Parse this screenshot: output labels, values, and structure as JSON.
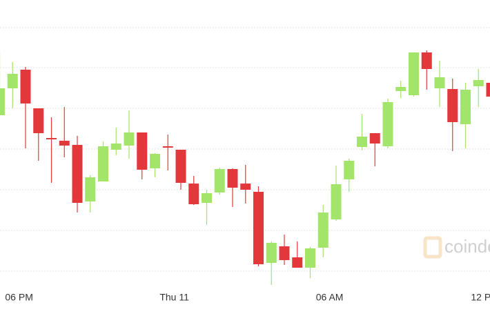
{
  "chart_data": {
    "type": "candlestick",
    "categories": [
      null,
      "06 PM",
      null,
      null,
      null,
      null,
      null,
      null,
      null,
      null,
      null,
      null,
      null,
      "Thu 11",
      null,
      null,
      null,
      null,
      null,
      null,
      null,
      null,
      null,
      null,
      null,
      "06 AM",
      null,
      null,
      null,
      null,
      null,
      null,
      null,
      null,
      null,
      null,
      null,
      "12 PM",
      null
    ],
    "open": [
      243,
      282,
      309,
      253,
      210,
      206,
      200,
      118,
      147,
      193,
      199,
      218,
      166,
      198,
      193,
      144,
      116,
      131,
      165,
      144,
      132,
      29,
      53,
      37,
      22,
      51,
      92,
      150,
      197,
      217,
      198,
      278,
      272,
      334,
      282,
      281,
      230,
      285,
      290
    ],
    "high": [
      335,
      320,
      313,
      253,
      240,
      255,
      213,
      156,
      205,
      225,
      250,
      218,
      188,
      215,
      193,
      155,
      135,
      167,
      166,
      171,
      140,
      60,
      70,
      60,
      52,
      113,
      170,
      180,
      245,
      217,
      267,
      293,
      334,
      337,
      322,
      296,
      290,
      310,
      300
    ],
    "low": [
      243,
      253,
      195,
      177,
      145,
      182,
      102,
      102,
      147,
      185,
      180,
      150,
      153,
      163,
      135,
      113,
      84,
      128,
      110,
      115,
      24,
      -3,
      26,
      22,
      7,
      37,
      90,
      132,
      192,
      169,
      195,
      268,
      270,
      280,
      255,
      191,
      195,
      255,
      265
    ],
    "close": [
      282,
      303,
      260,
      217,
      208,
      199,
      116,
      153,
      198,
      202,
      218,
      164,
      187,
      196,
      145,
      114,
      130,
      165,
      138,
      135,
      27,
      58,
      33,
      22,
      50,
      102,
      143,
      177,
      212,
      202,
      262,
      284,
      334,
      310,
      298,
      233,
      280,
      294,
      270
    ],
    "up_color": "#a3e46b",
    "down_color": "#e3383b",
    "ylim": [
      -10,
      410
    ],
    "yticks": [
      17,
      76,
      135,
      194,
      253,
      312,
      370
    ],
    "grid": true,
    "watermark": "coindesk"
  }
}
